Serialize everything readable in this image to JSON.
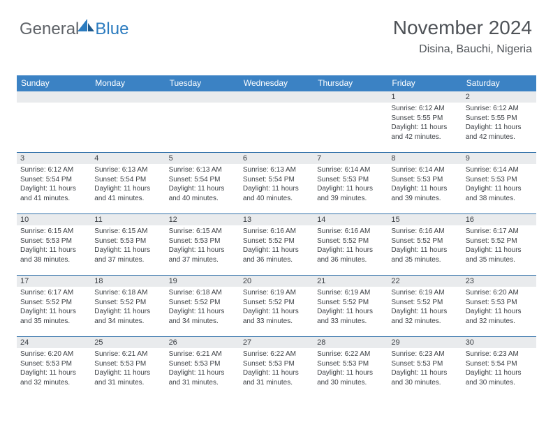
{
  "logo": {
    "text1": "General",
    "text2": "Blue"
  },
  "header": {
    "title": "November 2024",
    "location": "Disina, Bauchi, Nigeria"
  },
  "colors": {
    "header_bg": "#3b82c4",
    "header_text": "#ffffff",
    "daynum_bg": "#e9ebed",
    "cell_border": "#2f6fa8",
    "body_text": "#3b3f44",
    "title_text": "#4e5257",
    "logo_gray": "#5f6368",
    "logo_blue": "#2b7bbf"
  },
  "weekdays": [
    "Sunday",
    "Monday",
    "Tuesday",
    "Wednesday",
    "Thursday",
    "Friday",
    "Saturday"
  ],
  "weeks": [
    [
      {
        "n": "",
        "sr": "",
        "ss": "",
        "dl": ""
      },
      {
        "n": "",
        "sr": "",
        "ss": "",
        "dl": ""
      },
      {
        "n": "",
        "sr": "",
        "ss": "",
        "dl": ""
      },
      {
        "n": "",
        "sr": "",
        "ss": "",
        "dl": ""
      },
      {
        "n": "",
        "sr": "",
        "ss": "",
        "dl": ""
      },
      {
        "n": "1",
        "sr": "Sunrise: 6:12 AM",
        "ss": "Sunset: 5:55 PM",
        "dl": "Daylight: 11 hours and 42 minutes."
      },
      {
        "n": "2",
        "sr": "Sunrise: 6:12 AM",
        "ss": "Sunset: 5:55 PM",
        "dl": "Daylight: 11 hours and 42 minutes."
      }
    ],
    [
      {
        "n": "3",
        "sr": "Sunrise: 6:12 AM",
        "ss": "Sunset: 5:54 PM",
        "dl": "Daylight: 11 hours and 41 minutes."
      },
      {
        "n": "4",
        "sr": "Sunrise: 6:13 AM",
        "ss": "Sunset: 5:54 PM",
        "dl": "Daylight: 11 hours and 41 minutes."
      },
      {
        "n": "5",
        "sr": "Sunrise: 6:13 AM",
        "ss": "Sunset: 5:54 PM",
        "dl": "Daylight: 11 hours and 40 minutes."
      },
      {
        "n": "6",
        "sr": "Sunrise: 6:13 AM",
        "ss": "Sunset: 5:54 PM",
        "dl": "Daylight: 11 hours and 40 minutes."
      },
      {
        "n": "7",
        "sr": "Sunrise: 6:14 AM",
        "ss": "Sunset: 5:53 PM",
        "dl": "Daylight: 11 hours and 39 minutes."
      },
      {
        "n": "8",
        "sr": "Sunrise: 6:14 AM",
        "ss": "Sunset: 5:53 PM",
        "dl": "Daylight: 11 hours and 39 minutes."
      },
      {
        "n": "9",
        "sr": "Sunrise: 6:14 AM",
        "ss": "Sunset: 5:53 PM",
        "dl": "Daylight: 11 hours and 38 minutes."
      }
    ],
    [
      {
        "n": "10",
        "sr": "Sunrise: 6:15 AM",
        "ss": "Sunset: 5:53 PM",
        "dl": "Daylight: 11 hours and 38 minutes."
      },
      {
        "n": "11",
        "sr": "Sunrise: 6:15 AM",
        "ss": "Sunset: 5:53 PM",
        "dl": "Daylight: 11 hours and 37 minutes."
      },
      {
        "n": "12",
        "sr": "Sunrise: 6:15 AM",
        "ss": "Sunset: 5:53 PM",
        "dl": "Daylight: 11 hours and 37 minutes."
      },
      {
        "n": "13",
        "sr": "Sunrise: 6:16 AM",
        "ss": "Sunset: 5:52 PM",
        "dl": "Daylight: 11 hours and 36 minutes."
      },
      {
        "n": "14",
        "sr": "Sunrise: 6:16 AM",
        "ss": "Sunset: 5:52 PM",
        "dl": "Daylight: 11 hours and 36 minutes."
      },
      {
        "n": "15",
        "sr": "Sunrise: 6:16 AM",
        "ss": "Sunset: 5:52 PM",
        "dl": "Daylight: 11 hours and 35 minutes."
      },
      {
        "n": "16",
        "sr": "Sunrise: 6:17 AM",
        "ss": "Sunset: 5:52 PM",
        "dl": "Daylight: 11 hours and 35 minutes."
      }
    ],
    [
      {
        "n": "17",
        "sr": "Sunrise: 6:17 AM",
        "ss": "Sunset: 5:52 PM",
        "dl": "Daylight: 11 hours and 35 minutes."
      },
      {
        "n": "18",
        "sr": "Sunrise: 6:18 AM",
        "ss": "Sunset: 5:52 PM",
        "dl": "Daylight: 11 hours and 34 minutes."
      },
      {
        "n": "19",
        "sr": "Sunrise: 6:18 AM",
        "ss": "Sunset: 5:52 PM",
        "dl": "Daylight: 11 hours and 34 minutes."
      },
      {
        "n": "20",
        "sr": "Sunrise: 6:19 AM",
        "ss": "Sunset: 5:52 PM",
        "dl": "Daylight: 11 hours and 33 minutes."
      },
      {
        "n": "21",
        "sr": "Sunrise: 6:19 AM",
        "ss": "Sunset: 5:52 PM",
        "dl": "Daylight: 11 hours and 33 minutes."
      },
      {
        "n": "22",
        "sr": "Sunrise: 6:19 AM",
        "ss": "Sunset: 5:52 PM",
        "dl": "Daylight: 11 hours and 32 minutes."
      },
      {
        "n": "23",
        "sr": "Sunrise: 6:20 AM",
        "ss": "Sunset: 5:53 PM",
        "dl": "Daylight: 11 hours and 32 minutes."
      }
    ],
    [
      {
        "n": "24",
        "sr": "Sunrise: 6:20 AM",
        "ss": "Sunset: 5:53 PM",
        "dl": "Daylight: 11 hours and 32 minutes."
      },
      {
        "n": "25",
        "sr": "Sunrise: 6:21 AM",
        "ss": "Sunset: 5:53 PM",
        "dl": "Daylight: 11 hours and 31 minutes."
      },
      {
        "n": "26",
        "sr": "Sunrise: 6:21 AM",
        "ss": "Sunset: 5:53 PM",
        "dl": "Daylight: 11 hours and 31 minutes."
      },
      {
        "n": "27",
        "sr": "Sunrise: 6:22 AM",
        "ss": "Sunset: 5:53 PM",
        "dl": "Daylight: 11 hours and 31 minutes."
      },
      {
        "n": "28",
        "sr": "Sunrise: 6:22 AM",
        "ss": "Sunset: 5:53 PM",
        "dl": "Daylight: 11 hours and 30 minutes."
      },
      {
        "n": "29",
        "sr": "Sunrise: 6:23 AM",
        "ss": "Sunset: 5:53 PM",
        "dl": "Daylight: 11 hours and 30 minutes."
      },
      {
        "n": "30",
        "sr": "Sunrise: 6:23 AM",
        "ss": "Sunset: 5:54 PM",
        "dl": "Daylight: 11 hours and 30 minutes."
      }
    ]
  ]
}
